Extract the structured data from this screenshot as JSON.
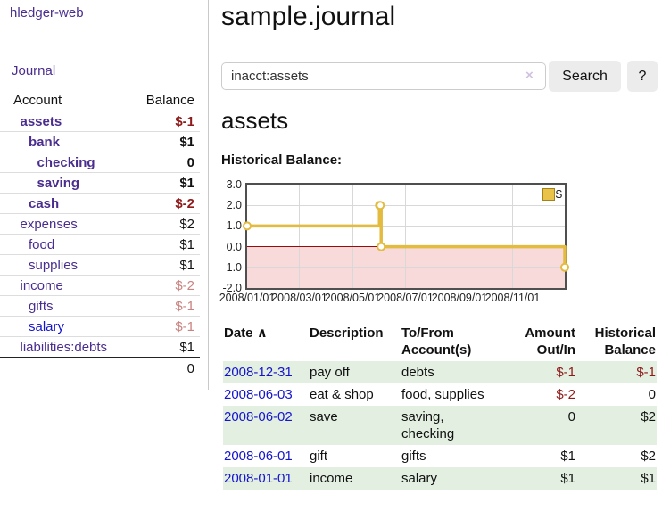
{
  "sidebar": {
    "app_title": "hledger-web",
    "nav": {
      "journal_label": "Journal"
    },
    "table": {
      "account_header": "Account",
      "balance_header": "Balance"
    },
    "accounts": [
      {
        "name": "assets",
        "level": 1,
        "bold": true,
        "balance": "$-1",
        "balance_class": "neg-strong"
      },
      {
        "name": "bank",
        "level": 2,
        "bold": true,
        "balance": "$1",
        "balance_class": "plain"
      },
      {
        "name": "checking",
        "level": 3,
        "bold": true,
        "balance": "0",
        "balance_class": "plain"
      },
      {
        "name": "saving",
        "level": 3,
        "bold": true,
        "balance": "$1",
        "balance_class": "plain"
      },
      {
        "name": "cash",
        "level": 2,
        "bold": true,
        "balance": "$-2",
        "balance_class": "neg-strong"
      },
      {
        "name": "expenses",
        "level": 1,
        "bold": false,
        "balance": "$2",
        "balance_class": "plain"
      },
      {
        "name": "food",
        "level": 2,
        "bold": false,
        "balance": "$1",
        "balance_class": "plain"
      },
      {
        "name": "supplies",
        "level": 2,
        "bold": false,
        "balance": "$1",
        "balance_class": "plain"
      },
      {
        "name": "income",
        "level": 1,
        "bold": false,
        "balance": "$-2",
        "balance_class": "neg-soft"
      },
      {
        "name": "gifts",
        "level": 2,
        "bold": false,
        "balance": "$-1",
        "balance_class": "neg-soft"
      },
      {
        "name": "salary",
        "level": 2,
        "bold": false,
        "balance": "$-1",
        "balance_class": "neg-soft",
        "link_style": "blue"
      },
      {
        "name": "liabilities:debts",
        "level": 1,
        "bold": false,
        "balance": "$1",
        "balance_class": "plain"
      }
    ],
    "total": "0"
  },
  "main": {
    "title": "sample.journal",
    "search": {
      "value": "inacct:assets",
      "clear_icon": "×",
      "button_label": "Search",
      "help_label": "?"
    },
    "account_heading": "assets",
    "chart_label": "Historical Balance:"
  },
  "chart_data": {
    "type": "line",
    "title": "Historical Balance:",
    "step": true,
    "x_range": [
      "2008-01-01",
      "2008-12-31"
    ],
    "ylim": [
      -2,
      3
    ],
    "y_ticks": [
      "3.0",
      "2.0",
      "1.0",
      "0.0",
      "-1.0",
      "-2.0"
    ],
    "x_ticks": [
      "2008/01/01",
      "2008/03/01",
      "2008/05/01",
      "2008/07/01",
      "2008/09/01",
      "2008/11/01"
    ],
    "grid": true,
    "legend": {
      "label": "$",
      "position": "top-right"
    },
    "series": [
      {
        "name": "$",
        "color": "#e3bb3f",
        "points": [
          {
            "date": "2008-01-01",
            "value": 1
          },
          {
            "date": "2008-06-01",
            "value": 2
          },
          {
            "date": "2008-06-02",
            "value": 2
          },
          {
            "date": "2008-06-03",
            "value": 0
          },
          {
            "date": "2008-12-31",
            "value": -1
          }
        ]
      }
    ],
    "negative_region_color": "#f9dada",
    "zero_line_color": "#9d0a0a"
  },
  "register": {
    "headers": {
      "date": "Date",
      "sort_icon": "∧",
      "description": "Description",
      "account": "To/From Account(s)",
      "amount": "Amount Out/In",
      "balance": "Historical Balance"
    },
    "rows": [
      {
        "date": "2008-12-31",
        "description": "pay off",
        "accounts": "debts",
        "amount": "$-1",
        "amount_class": "neg",
        "balance": "$-1",
        "balance_class": "neg",
        "highlight": true
      },
      {
        "date": "2008-06-03",
        "description": "eat & shop",
        "accounts": "food, supplies",
        "amount": "$-2",
        "amount_class": "neg",
        "balance": "0",
        "balance_class": "plain",
        "highlight": false
      },
      {
        "date": "2008-06-02",
        "description": "save",
        "accounts": "saving,\nchecking",
        "amount": "0",
        "amount_class": "plain",
        "balance": "$2",
        "balance_class": "plain",
        "highlight": true
      },
      {
        "date": "2008-06-01",
        "description": "gift",
        "accounts": "gifts",
        "amount": "$1",
        "amount_class": "plain",
        "balance": "$2",
        "balance_class": "plain",
        "highlight": false
      },
      {
        "date": "2008-01-01",
        "description": "income",
        "accounts": "salary",
        "amount": "$1",
        "amount_class": "plain",
        "balance": "$1",
        "balance_class": "plain",
        "highlight": true
      }
    ]
  },
  "colors": {
    "accent_purple": "#4a2d8e",
    "link_blue": "#1515cd",
    "negative_strong": "#8f1a1a",
    "negative_soft": "#c8837f",
    "row_highlight_green": "#e2efe1",
    "chart_line_gold": "#e3bb3f",
    "chart_negative_pink": "#f9dada",
    "chart_zero_red": "#9d0a0a"
  }
}
